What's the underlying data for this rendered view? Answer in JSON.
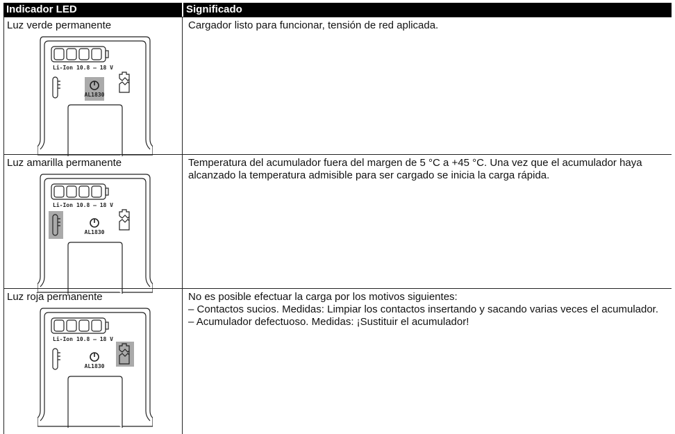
{
  "table": {
    "header": [
      "Indicador LED",
      "Significado"
    ],
    "rows": [
      {
        "led": "Luz verde permanente",
        "figure": {
          "battery": "Li-Ion",
          "voltage": "10.8 – 18 V",
          "model": "AL1830"
        },
        "meaning": {
          "text": "Cargador listo para funcionar, tensión de red aplicada.",
          "items": []
        }
      },
      {
        "led": "Luz amarilla permanente",
        "figure": {
          "battery": "Li-Ion",
          "voltage": "10.8 – 18 V",
          "model": "AL1830"
        },
        "meaning": {
          "text": "Temperatura del acumulador fuera del margen de 5 °C a +45 °C. Una vez que el acumulador haya alcanzado la temperatura admisible para ser cargado se inicia la carga rápida.",
          "items": []
        }
      },
      {
        "led": "Luz roja permanente",
        "figure": {
          "battery": "Li-Ion",
          "voltage": "10.8 – 18 V",
          "model": "AL1830"
        },
        "meaning": {
          "text": "No es posible efectuar la carga por los motivos siguientes:",
          "items": [
            "Contactos sucios. Medidas: Limpiar los contactos insertando y sacando varias veces el acumulador.",
            "Acumulador defectuoso. Medidas: ¡Sustituir el acumulador!"
          ]
        }
      }
    ]
  }
}
